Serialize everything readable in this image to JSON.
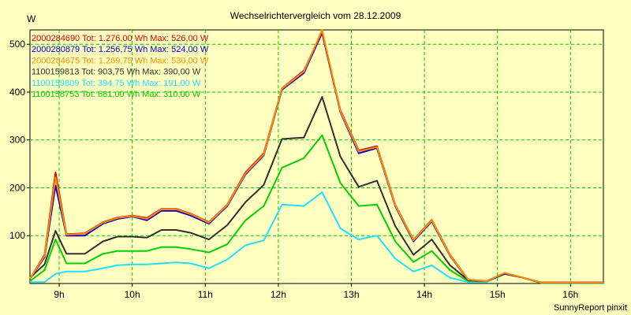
{
  "chart_data": {
    "type": "line",
    "title": "Wechselrichtervergleich vom 28.12.2009",
    "ylabel": "W",
    "xlabel": "",
    "ylim": [
      0,
      530
    ],
    "xlim": [
      8.6,
      16.45
    ],
    "grid": true,
    "footer": "SunnyReport pinxit",
    "x_ticks": [
      {
        "value": 9,
        "label": "9h"
      },
      {
        "value": 10,
        "label": "10h"
      },
      {
        "value": 11,
        "label": "11h"
      },
      {
        "value": 12,
        "label": "12h"
      },
      {
        "value": 13,
        "label": "13h"
      },
      {
        "value": 14,
        "label": "14h"
      },
      {
        "value": 15,
        "label": "15h"
      },
      {
        "value": 16,
        "label": "16h"
      }
    ],
    "y_ticks": [
      100,
      200,
      300,
      400,
      500
    ],
    "x": [
      8.6,
      8.8,
      8.95,
      9.1,
      9.35,
      9.6,
      9.8,
      10.0,
      10.2,
      10.4,
      10.6,
      10.8,
      11.05,
      11.3,
      11.55,
      11.8,
      12.05,
      12.35,
      12.6,
      12.85,
      13.1,
      13.35,
      13.6,
      13.85,
      14.1,
      14.35,
      14.6,
      14.85,
      15.1,
      15.35,
      15.6,
      15.9,
      16.2,
      16.45
    ],
    "series": [
      {
        "name": "2000284690",
        "legend": "2000284690 Tot: 1.276,00 Wh Max: 526,00 W",
        "color": "#e00000",
        "values": [
          10,
          60,
          232,
          103,
          105,
          128,
          138,
          142,
          137,
          156,
          156,
          146,
          128,
          165,
          232,
          272,
          408,
          445,
          526,
          362,
          278,
          287,
          165,
          91,
          133,
          60,
          8,
          5,
          22,
          12,
          2,
          2,
          2,
          2
        ]
      },
      {
        "name": "2000280879",
        "legend": "2000280879 Tot: 1.256,75 Wh Max: 524,00 W",
        "color": "#0000d0",
        "values": [
          10,
          55,
          205,
          100,
          100,
          125,
          135,
          140,
          132,
          152,
          152,
          142,
          125,
          162,
          228,
          268,
          405,
          440,
          524,
          358,
          272,
          283,
          162,
          88,
          130,
          58,
          7,
          5,
          21,
          12,
          2,
          2,
          2,
          2
        ]
      },
      {
        "name": "2000284675",
        "legend": "2000284675 Tot: 1.269,75 Wh Max: 530,00 W",
        "color": "#ff8c00",
        "values": [
          10,
          58,
          222,
          102,
          104,
          127,
          137,
          141,
          135,
          155,
          155,
          145,
          127,
          164,
          230,
          270,
          407,
          443,
          530,
          360,
          276,
          285,
          164,
          90,
          132,
          59,
          8,
          5,
          22,
          12,
          2,
          2,
          2,
          2
        ]
      },
      {
        "name": "1100159813",
        "legend": "1100159813 Tot: 903,75 Wh Max: 390,00 W",
        "color": "#303030",
        "values": [
          12,
          40,
          110,
          62,
          62,
          88,
          98,
          98,
          96,
          112,
          112,
          106,
          92,
          122,
          170,
          206,
          302,
          305,
          390,
          265,
          202,
          215,
          120,
          60,
          92,
          38,
          7,
          5,
          20,
          12,
          2,
          2,
          2,
          2
        ]
      },
      {
        "name": "1100159809",
        "legend": "1100159809 Tot: 394,75 Wh Max: 191,00 W",
        "color": "#20e0ff",
        "values": [
          3,
          3,
          20,
          25,
          25,
          32,
          38,
          40,
          40,
          42,
          44,
          42,
          32,
          50,
          80,
          90,
          165,
          162,
          191,
          115,
          92,
          100,
          52,
          25,
          38,
          12,
          3,
          3,
          20,
          12,
          1,
          1,
          1,
          1
        ]
      },
      {
        "name": "1100158753",
        "legend": "1100158753 Tot: 681,00 Wh Max: 310,00 W",
        "color": "#00d000",
        "values": [
          5,
          28,
          92,
          42,
          42,
          62,
          68,
          68,
          68,
          76,
          76,
          72,
          65,
          82,
          132,
          162,
          242,
          262,
          310,
          210,
          162,
          165,
          88,
          45,
          68,
          28,
          5,
          5,
          20,
          12,
          1,
          1,
          1,
          1
        ]
      }
    ]
  }
}
